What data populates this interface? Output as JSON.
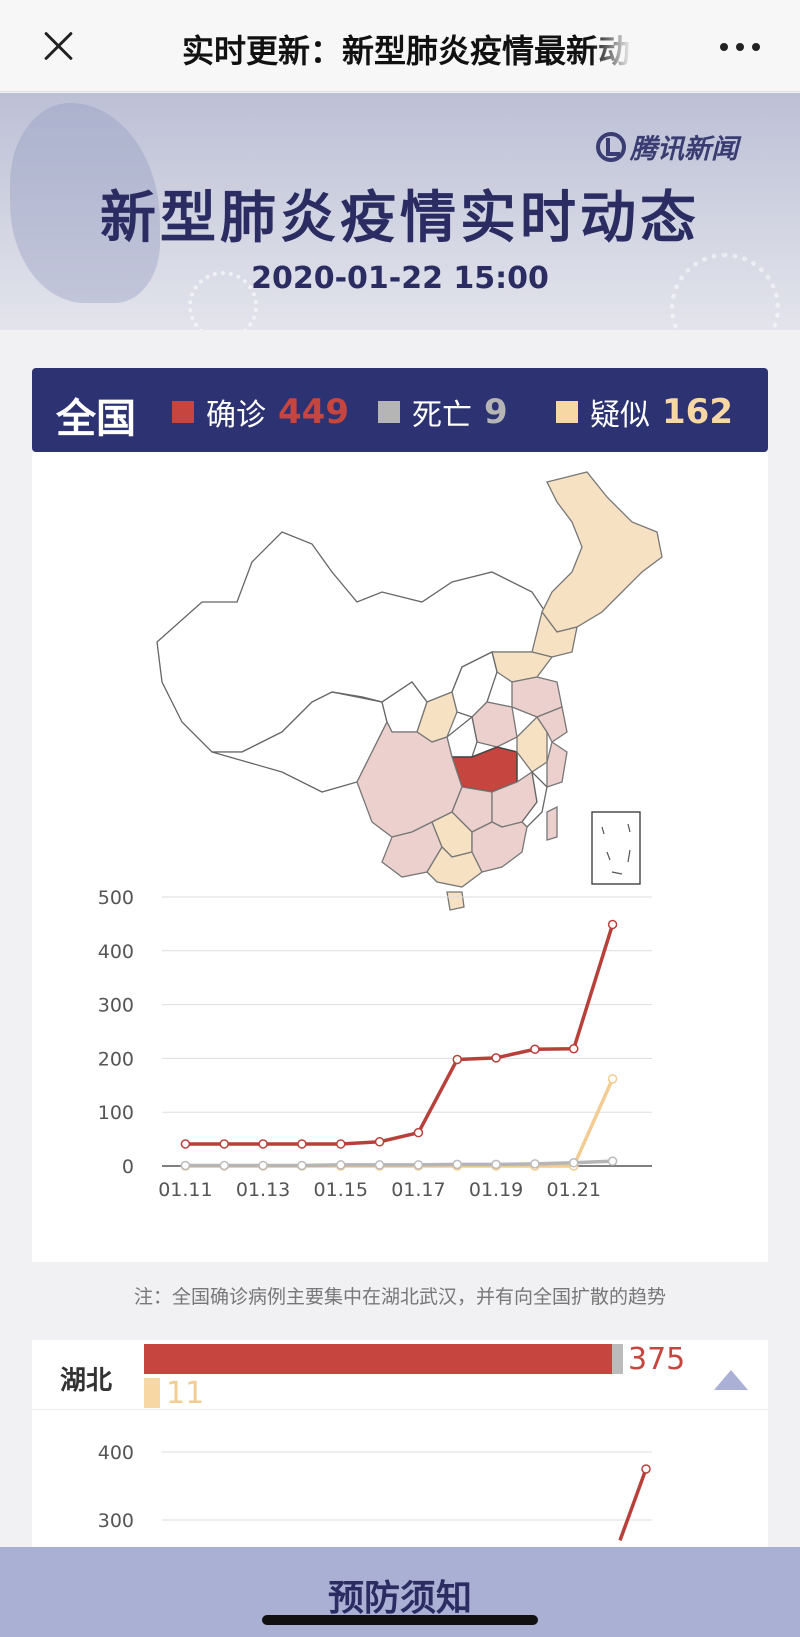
{
  "topbar": {
    "title": "实时更新：新型肺炎疫情最新动态"
  },
  "banner": {
    "brand": "腾讯新闻",
    "title": "新型肺炎疫情实时动态",
    "datetime": "2020-01-22 15:00"
  },
  "summary": {
    "region": "全国",
    "stats": [
      {
        "label": "确诊",
        "value": "449",
        "color": "#c6463f"
      },
      {
        "label": "死亡",
        "value": "9",
        "color": "#b5b5b5"
      },
      {
        "label": "疑似",
        "value": "162",
        "color": "#f7d7a4"
      }
    ]
  },
  "map": {
    "legend_colors": {
      "high": "#c6463f",
      "medium": "#ecd0cd",
      "suspected": "#f7e1c3",
      "none": "#ffffff"
    }
  },
  "chart_data": [
    {
      "type": "line",
      "title": "",
      "xlabel": "",
      "ylabel": "",
      "x": [
        "01.11",
        "01.12",
        "01.13",
        "01.14",
        "01.15",
        "01.16",
        "01.17",
        "01.18",
        "01.19",
        "01.20",
        "01.21",
        "01.22"
      ],
      "x_tick_labels": [
        "01.11",
        "01.13",
        "01.15",
        "01.17",
        "01.19",
        "01.21"
      ],
      "y_ticks": [
        0,
        100,
        200,
        300,
        400,
        500
      ],
      "ylim": [
        0,
        500
      ],
      "grid": true,
      "series": [
        {
          "name": "确诊",
          "color": "#b8403a",
          "values": [
            41,
            41,
            41,
            41,
            41,
            45,
            62,
            198,
            201,
            217,
            218,
            449
          ]
        },
        {
          "name": "疑似",
          "color": "#f2cc92",
          "values": [
            0,
            0,
            0,
            0,
            0,
            0,
            0,
            0,
            0,
            0,
            0,
            162
          ]
        },
        {
          "name": "死亡",
          "color": "#b5b5b5",
          "values": [
            1,
            1,
            1,
            1,
            2,
            2,
            2,
            3,
            3,
            4,
            6,
            9
          ]
        }
      ]
    },
    {
      "type": "line",
      "title": "",
      "y_ticks": [
        300,
        400
      ],
      "series": [
        {
          "name": "确诊",
          "color": "#b8403a",
          "values": [
            270,
            375
          ]
        }
      ]
    }
  ],
  "note": "注：全国确诊病例主要集中在湖北武汉，并有向全国扩散的趋势",
  "hubei": {
    "label": "湖北",
    "confirmed": "375",
    "suspected": "11",
    "confirmed_fraction": 0.835
  },
  "bottom": {
    "label": "预防须知"
  }
}
